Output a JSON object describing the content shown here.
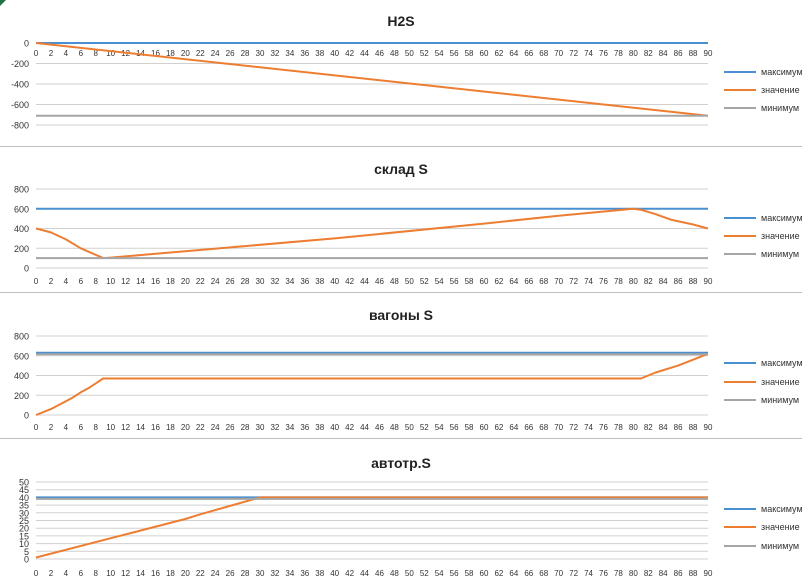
{
  "chart_data": [
    {
      "type": "line",
      "title": "H2S",
      "x": [
        0,
        90
      ],
      "xlim": [
        0,
        90
      ],
      "ylim": [
        -800,
        0
      ],
      "x_ticks": [
        0,
        2,
        4,
        6,
        8,
        10,
        12,
        14,
        16,
        18,
        20,
        22,
        24,
        26,
        28,
        30,
        32,
        34,
        36,
        38,
        40,
        42,
        44,
        46,
        48,
        50,
        52,
        54,
        56,
        58,
        60,
        62,
        64,
        66,
        68,
        70,
        72,
        74,
        76,
        78,
        80,
        82,
        84,
        86,
        88,
        90
      ],
      "y_ticks": [
        -800,
        -600,
        -400,
        -200,
        0
      ],
      "legend_position": "right",
      "grid": true,
      "series": [
        {
          "name": "максимум",
          "color": "#4a8fcf",
          "x": [
            0,
            90
          ],
          "values": [
            0,
            0
          ]
        },
        {
          "name": "значение",
          "color": "#ed7d31",
          "x": [
            0,
            90
          ],
          "values": [
            0,
            -710
          ]
        },
        {
          "name": "минимум",
          "color": "#a5a5a5",
          "x": [
            0,
            90
          ],
          "values": [
            -710,
            -710
          ]
        }
      ]
    },
    {
      "type": "line",
      "title": "склад S",
      "xlim": [
        0,
        90
      ],
      "ylim": [
        0,
        800
      ],
      "x_ticks": [
        0,
        2,
        4,
        6,
        8,
        10,
        12,
        14,
        16,
        18,
        20,
        22,
        24,
        26,
        28,
        30,
        32,
        34,
        36,
        38,
        40,
        42,
        44,
        46,
        48,
        50,
        52,
        54,
        56,
        58,
        60,
        62,
        64,
        66,
        68,
        70,
        72,
        74,
        76,
        78,
        80,
        82,
        84,
        86,
        88,
        90
      ],
      "y_ticks": [
        0,
        200,
        400,
        600,
        800
      ],
      "legend_position": "right",
      "grid": true,
      "series": [
        {
          "name": "максимум",
          "color": "#4a8fcf",
          "x": [
            0,
            90
          ],
          "values": [
            600,
            600
          ]
        },
        {
          "name": "значение",
          "color": "#ed7d31",
          "x": [
            0,
            2,
            4,
            6,
            9,
            10,
            20,
            40,
            60,
            70,
            80,
            81,
            83,
            85,
            88,
            90
          ],
          "values": [
            400,
            360,
            290,
            200,
            100,
            105,
            170,
            300,
            450,
            530,
            600,
            590,
            545,
            490,
            440,
            400
          ]
        },
        {
          "name": "минимум",
          "color": "#a5a5a5",
          "x": [
            0,
            90
          ],
          "values": [
            100,
            100
          ]
        }
      ]
    },
    {
      "type": "line",
      "title": "вагоны S",
      "xlim": [
        0,
        90
      ],
      "ylim": [
        0,
        800
      ],
      "x_ticks": [
        0,
        2,
        4,
        6,
        8,
        10,
        12,
        14,
        16,
        18,
        20,
        22,
        24,
        26,
        28,
        30,
        32,
        34,
        36,
        38,
        40,
        42,
        44,
        46,
        48,
        50,
        52,
        54,
        56,
        58,
        60,
        62,
        64,
        66,
        68,
        70,
        72,
        74,
        76,
        78,
        80,
        82,
        84,
        86,
        88,
        90
      ],
      "y_ticks": [
        0,
        200,
        400,
        600,
        800
      ],
      "legend_position": "right",
      "grid": true,
      "series": [
        {
          "name": "максимум",
          "color": "#4a8fcf",
          "x": [
            0,
            90
          ],
          "values": [
            630,
            630
          ]
        },
        {
          "name": "значение",
          "color": "#ed7d31",
          "x": [
            0,
            2,
            4,
            5,
            6,
            7,
            8,
            9,
            81,
            83,
            86,
            88,
            90
          ],
          "values": [
            0,
            60,
            140,
            180,
            230,
            270,
            320,
            370,
            370,
            430,
            500,
            560,
            620
          ]
        },
        {
          "name": "минимум",
          "color": "#a5a5a5",
          "x": [
            0,
            90
          ],
          "values": [
            615,
            615
          ]
        }
      ]
    },
    {
      "type": "line",
      "title": "автотр.S",
      "xlim": [
        0,
        90
      ],
      "ylim": [
        0,
        50
      ],
      "x_ticks": [
        0,
        2,
        4,
        6,
        8,
        10,
        12,
        14,
        16,
        18,
        20,
        22,
        24,
        26,
        28,
        30,
        32,
        34,
        36,
        38,
        40,
        42,
        44,
        46,
        48,
        50,
        52,
        54,
        56,
        58,
        60,
        62,
        64,
        66,
        68,
        70,
        72,
        74,
        76,
        78,
        80,
        82,
        84,
        86,
        88,
        90
      ],
      "y_ticks": [
        0,
        5,
        10,
        15,
        20,
        25,
        30,
        35,
        40,
        45,
        50
      ],
      "legend_position": "right",
      "grid": true,
      "series": [
        {
          "name": "максимум",
          "color": "#4a8fcf",
          "x": [
            0,
            90
          ],
          "values": [
            40,
            40
          ]
        },
        {
          "name": "значение",
          "color": "#ed7d31",
          "x": [
            0,
            20,
            22,
            30,
            90
          ],
          "values": [
            1,
            26,
            29,
            40,
            40
          ]
        },
        {
          "name": "минимум",
          "color": "#a5a5a5",
          "x": [
            0,
            90
          ],
          "values": [
            39,
            39
          ]
        }
      ]
    }
  ]
}
